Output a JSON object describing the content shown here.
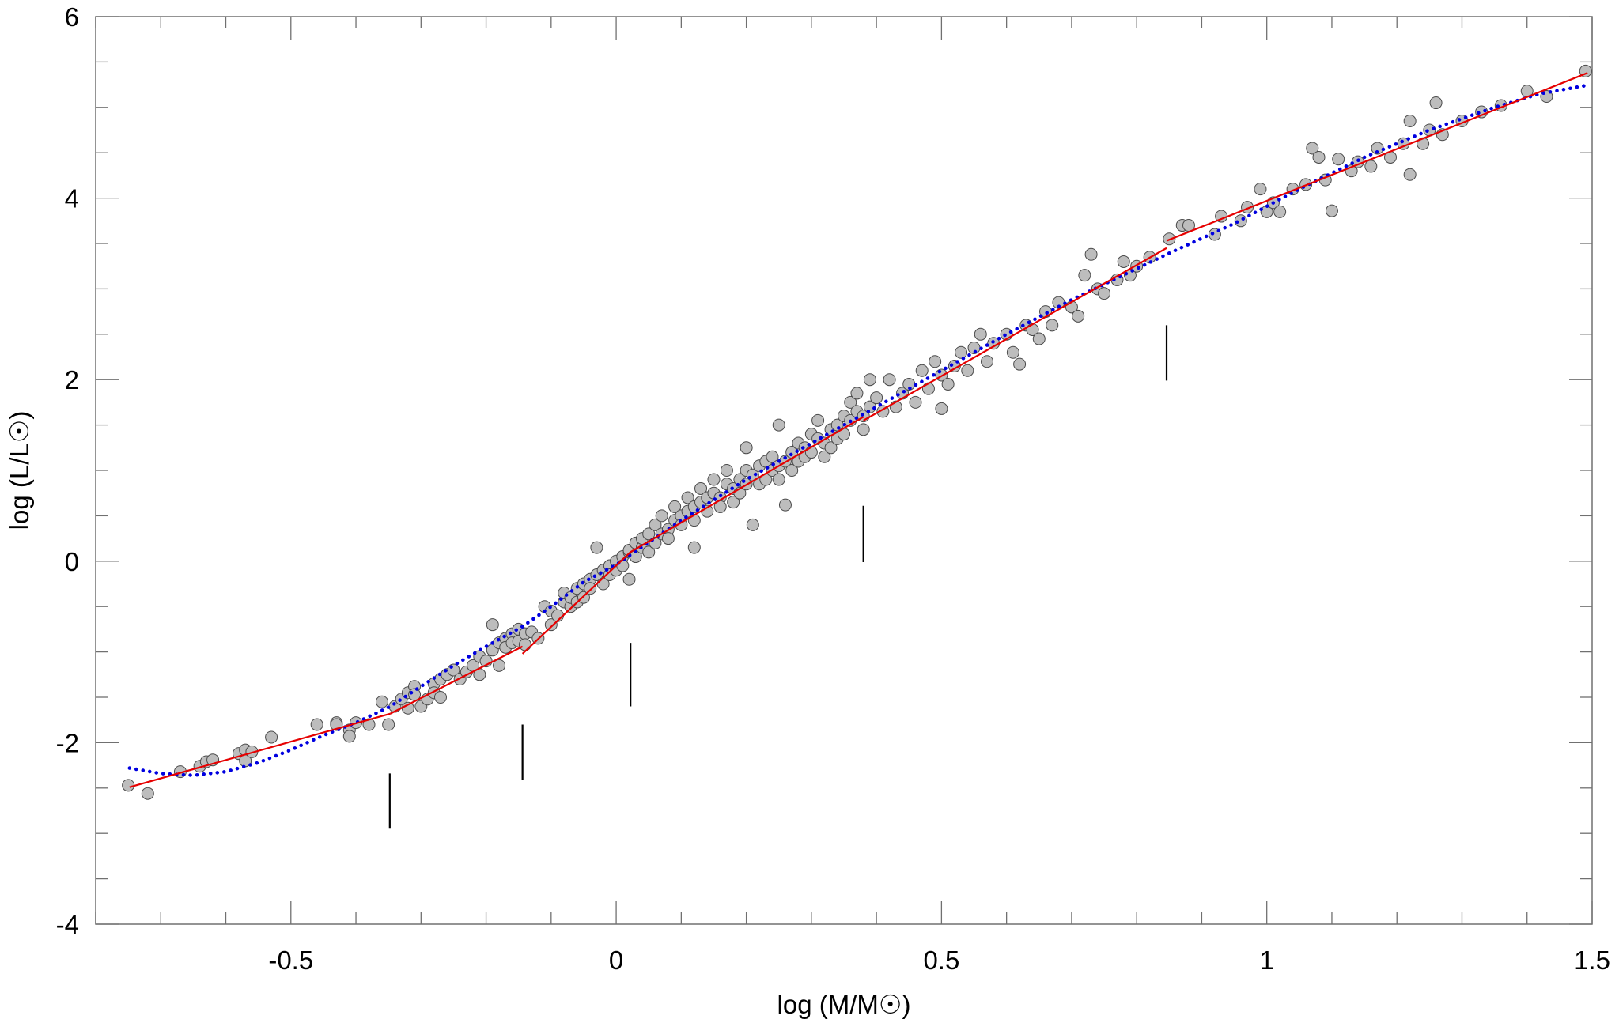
{
  "chart_data": {
    "type": "scatter",
    "title": "",
    "xlabel": "log (M/M☉)",
    "ylabel": "log (L/L☉)",
    "xlim": [
      -0.8,
      1.5
    ],
    "ylim": [
      -4,
      6
    ],
    "grid": false,
    "legend": null,
    "x_ticks": [
      {
        "value": -0.5,
        "label": "-0.5"
      },
      {
        "value": 0,
        "label": "0"
      },
      {
        "value": 0.5,
        "label": "0.5"
      },
      {
        "value": 1,
        "label": "1"
      },
      {
        "value": 1.5,
        "label": "1.5"
      }
    ],
    "x_minor_step": 0.1,
    "y_ticks": [
      {
        "value": -4,
        "label": "-4"
      },
      {
        "value": -2,
        "label": "-2"
      },
      {
        "value": 0,
        "label": "0"
      },
      {
        "value": 2,
        "label": "2"
      },
      {
        "value": 4,
        "label": "4"
      },
      {
        "value": 6,
        "label": "6"
      }
    ],
    "y_minor_step": 0.5,
    "series": [
      {
        "name": "stars",
        "kind": "scatter",
        "color": "#bdbdbd",
        "edge": "#4a4a4a",
        "points": [
          [
            -0.75,
            -2.47
          ],
          [
            -0.72,
            -2.56
          ],
          [
            -0.67,
            -2.32
          ],
          [
            -0.64,
            -2.26
          ],
          [
            -0.63,
            -2.21
          ],
          [
            -0.62,
            -2.19
          ],
          [
            -0.58,
            -2.12
          ],
          [
            -0.57,
            -2.08
          ],
          [
            -0.57,
            -2.2
          ],
          [
            -0.56,
            -2.1
          ],
          [
            -0.53,
            -1.94
          ],
          [
            -0.46,
            -1.8
          ],
          [
            -0.43,
            -1.78
          ],
          [
            -0.43,
            -1.8
          ],
          [
            -0.41,
            -1.86
          ],
          [
            -0.41,
            -1.93
          ],
          [
            -0.4,
            -1.78
          ],
          [
            -0.38,
            -1.8
          ],
          [
            -0.36,
            -1.55
          ],
          [
            -0.35,
            -1.8
          ],
          [
            -0.34,
            -1.6
          ],
          [
            -0.33,
            -1.52
          ],
          [
            -0.32,
            -1.45
          ],
          [
            -0.32,
            -1.62
          ],
          [
            -0.31,
            -1.38
          ],
          [
            -0.31,
            -1.47
          ],
          [
            -0.3,
            -1.6
          ],
          [
            -0.29,
            -1.52
          ],
          [
            -0.28,
            -1.35
          ],
          [
            -0.28,
            -1.45
          ],
          [
            -0.27,
            -1.3
          ],
          [
            -0.27,
            -1.5
          ],
          [
            -0.26,
            -1.25
          ],
          [
            -0.25,
            -1.2
          ],
          [
            -0.24,
            -1.3
          ],
          [
            -0.23,
            -1.22
          ],
          [
            -0.22,
            -1.15
          ],
          [
            -0.21,
            -1.25
          ],
          [
            -0.21,
            -1.05
          ],
          [
            -0.2,
            -1.1
          ],
          [
            -0.19,
            -0.98
          ],
          [
            -0.19,
            -0.7
          ],
          [
            -0.18,
            -0.9
          ],
          [
            -0.18,
            -1.15
          ],
          [
            -0.17,
            -0.85
          ],
          [
            -0.17,
            -0.95
          ],
          [
            -0.16,
            -0.8
          ],
          [
            -0.16,
            -0.9
          ],
          [
            -0.15,
            -0.75
          ],
          [
            -0.15,
            -0.88
          ],
          [
            -0.14,
            -0.8
          ],
          [
            -0.14,
            -0.92
          ],
          [
            -0.13,
            -0.78
          ],
          [
            -0.12,
            -0.85
          ],
          [
            -0.11,
            -0.5
          ],
          [
            -0.1,
            -0.7
          ],
          [
            -0.1,
            -0.55
          ],
          [
            -0.09,
            -0.6
          ],
          [
            -0.08,
            -0.45
          ],
          [
            -0.08,
            -0.35
          ],
          [
            -0.07,
            -0.5
          ],
          [
            -0.07,
            -0.4
          ],
          [
            -0.06,
            -0.3
          ],
          [
            -0.06,
            -0.45
          ],
          [
            -0.05,
            -0.25
          ],
          [
            -0.05,
            -0.4
          ],
          [
            -0.04,
            -0.2
          ],
          [
            -0.04,
            -0.3
          ],
          [
            -0.03,
            -0.15
          ],
          [
            -0.03,
            0.15
          ],
          [
            -0.02,
            -0.1
          ],
          [
            -0.02,
            -0.25
          ],
          [
            -0.01,
            -0.05
          ],
          [
            -0.01,
            -0.15
          ],
          [
            0.0,
            0.0
          ],
          [
            0.0,
            -0.1
          ],
          [
            0.01,
            0.05
          ],
          [
            0.01,
            -0.05
          ],
          [
            0.02,
            0.1
          ],
          [
            0.02,
            -0.2
          ],
          [
            0.02,
            0.12
          ],
          [
            0.03,
            0.2
          ],
          [
            0.03,
            0.05
          ],
          [
            0.04,
            0.15
          ],
          [
            0.04,
            0.25
          ],
          [
            0.05,
            0.1
          ],
          [
            0.05,
            0.3
          ],
          [
            0.06,
            0.2
          ],
          [
            0.06,
            0.4
          ],
          [
            0.07,
            0.3
          ],
          [
            0.07,
            0.5
          ],
          [
            0.08,
            0.35
          ],
          [
            0.08,
            0.25
          ],
          [
            0.09,
            0.45
          ],
          [
            0.09,
            0.6
          ],
          [
            0.1,
            0.5
          ],
          [
            0.1,
            0.4
          ],
          [
            0.11,
            0.55
          ],
          [
            0.11,
            0.7
          ],
          [
            0.12,
            0.6
          ],
          [
            0.12,
            0.45
          ],
          [
            0.12,
            0.15
          ],
          [
            0.13,
            0.65
          ],
          [
            0.13,
            0.8
          ],
          [
            0.14,
            0.55
          ],
          [
            0.14,
            0.7
          ],
          [
            0.15,
            0.75
          ],
          [
            0.15,
            0.9
          ],
          [
            0.16,
            0.7
          ],
          [
            0.16,
            0.6
          ],
          [
            0.17,
            0.85
          ],
          [
            0.17,
            1.0
          ],
          [
            0.18,
            0.8
          ],
          [
            0.18,
            0.65
          ],
          [
            0.19,
            0.9
          ],
          [
            0.19,
            0.75
          ],
          [
            0.2,
            1.0
          ],
          [
            0.2,
            0.85
          ],
          [
            0.2,
            1.25
          ],
          [
            0.21,
            0.95
          ],
          [
            0.21,
            0.4
          ],
          [
            0.22,
            0.85
          ],
          [
            0.22,
            1.05
          ],
          [
            0.23,
            1.1
          ],
          [
            0.23,
            0.9
          ],
          [
            0.24,
            1.0
          ],
          [
            0.24,
            1.15
          ],
          [
            0.25,
            1.05
          ],
          [
            0.25,
            0.9
          ],
          [
            0.25,
            1.5
          ],
          [
            0.26,
            1.1
          ],
          [
            0.26,
            0.62
          ],
          [
            0.27,
            1.2
          ],
          [
            0.27,
            1.0
          ],
          [
            0.28,
            1.3
          ],
          [
            0.28,
            1.1
          ],
          [
            0.29,
            1.25
          ],
          [
            0.29,
            1.15
          ],
          [
            0.3,
            1.4
          ],
          [
            0.3,
            1.2
          ],
          [
            0.31,
            1.35
          ],
          [
            0.31,
            1.55
          ],
          [
            0.32,
            1.3
          ],
          [
            0.32,
            1.15
          ],
          [
            0.33,
            1.45
          ],
          [
            0.33,
            1.25
          ],
          [
            0.34,
            1.5
          ],
          [
            0.34,
            1.35
          ],
          [
            0.35,
            1.6
          ],
          [
            0.35,
            1.4
          ],
          [
            0.36,
            1.75
          ],
          [
            0.36,
            1.55
          ],
          [
            0.37,
            1.65
          ],
          [
            0.37,
            1.85
          ],
          [
            0.38,
            1.6
          ],
          [
            0.38,
            1.45
          ],
          [
            0.39,
            1.7
          ],
          [
            0.39,
            2.0
          ],
          [
            0.4,
            1.8
          ],
          [
            0.41,
            1.65
          ],
          [
            0.42,
            2.0
          ],
          [
            0.43,
            1.7
          ],
          [
            0.44,
            1.85
          ],
          [
            0.45,
            1.95
          ],
          [
            0.46,
            1.75
          ],
          [
            0.47,
            2.1
          ],
          [
            0.48,
            1.9
          ],
          [
            0.49,
            2.2
          ],
          [
            0.5,
            2.05
          ],
          [
            0.5,
            1.68
          ],
          [
            0.51,
            1.95
          ],
          [
            0.52,
            2.15
          ],
          [
            0.53,
            2.3
          ],
          [
            0.54,
            2.1
          ],
          [
            0.55,
            2.35
          ],
          [
            0.56,
            2.5
          ],
          [
            0.57,
            2.2
          ],
          [
            0.58,
            2.4
          ],
          [
            0.6,
            2.5
          ],
          [
            0.61,
            2.3
          ],
          [
            0.62,
            2.17
          ],
          [
            0.63,
            2.6
          ],
          [
            0.64,
            2.55
          ],
          [
            0.65,
            2.45
          ],
          [
            0.66,
            2.75
          ],
          [
            0.67,
            2.6
          ],
          [
            0.68,
            2.85
          ],
          [
            0.7,
            2.8
          ],
          [
            0.71,
            2.7
          ],
          [
            0.72,
            3.15
          ],
          [
            0.73,
            3.38
          ],
          [
            0.74,
            3.0
          ],
          [
            0.75,
            2.95
          ],
          [
            0.77,
            3.1
          ],
          [
            0.78,
            3.3
          ],
          [
            0.79,
            3.15
          ],
          [
            0.8,
            3.25
          ],
          [
            0.82,
            3.35
          ],
          [
            0.85,
            3.55
          ],
          [
            0.87,
            3.7
          ],
          [
            0.88,
            3.7
          ],
          [
            0.92,
            3.6
          ],
          [
            0.93,
            3.8
          ],
          [
            0.96,
            3.75
          ],
          [
            0.97,
            3.9
          ],
          [
            0.99,
            4.1
          ],
          [
            1.0,
            3.85
          ],
          [
            1.01,
            3.95
          ],
          [
            1.02,
            3.85
          ],
          [
            1.04,
            4.1
          ],
          [
            1.06,
            4.15
          ],
          [
            1.07,
            4.55
          ],
          [
            1.08,
            4.45
          ],
          [
            1.09,
            4.2
          ],
          [
            1.1,
            3.86
          ],
          [
            1.11,
            4.43
          ],
          [
            1.13,
            4.3
          ],
          [
            1.14,
            4.4
          ],
          [
            1.16,
            4.35
          ],
          [
            1.17,
            4.55
          ],
          [
            1.19,
            4.45
          ],
          [
            1.21,
            4.6
          ],
          [
            1.22,
            4.26
          ],
          [
            1.22,
            4.85
          ],
          [
            1.24,
            4.6
          ],
          [
            1.25,
            4.75
          ],
          [
            1.26,
            5.05
          ],
          [
            1.27,
            4.7
          ],
          [
            1.3,
            4.85
          ],
          [
            1.33,
            4.95
          ],
          [
            1.36,
            5.02
          ],
          [
            1.4,
            5.18
          ],
          [
            1.43,
            5.12
          ],
          [
            1.49,
            5.4
          ]
        ]
      },
      {
        "name": "fit-piecewise",
        "kind": "line",
        "color": "#e60000",
        "style": "solid",
        "segments": [
          [
            [
              -0.748,
              -2.49
            ],
            [
              -0.347,
              -1.68
            ]
          ],
          [
            [
              -0.347,
              -1.68
            ],
            [
              -0.144,
              -0.94
            ]
          ],
          [
            [
              -0.144,
              -1.02
            ],
            [
              0.022,
              0.1
            ],
            [
              0.38,
              1.59
            ]
          ],
          [
            [
              0.38,
              1.55
            ],
            [
              0.846,
              3.45
            ]
          ],
          [
            [
              0.846,
              3.53
            ],
            [
              1.493,
              5.38
            ]
          ]
        ]
      },
      {
        "name": "fit-polynomial",
        "kind": "line",
        "color": "#0000e0",
        "style": "dotted",
        "points": [
          [
            -0.748,
            -2.28
          ],
          [
            -0.7,
            -2.34
          ],
          [
            -0.65,
            -2.36
          ],
          [
            -0.6,
            -2.32
          ],
          [
            -0.55,
            -2.22
          ],
          [
            -0.5,
            -2.08
          ],
          [
            -0.45,
            -1.92
          ],
          [
            -0.4,
            -1.78
          ],
          [
            -0.347,
            -1.6
          ],
          [
            -0.3,
            -1.38
          ],
          [
            -0.25,
            -1.15
          ],
          [
            -0.2,
            -0.94
          ],
          [
            -0.144,
            -0.72
          ],
          [
            -0.1,
            -0.5
          ],
          [
            -0.05,
            -0.23
          ],
          [
            0.0,
            -0.04
          ],
          [
            0.022,
            0.07
          ],
          [
            0.1,
            0.45
          ],
          [
            0.2,
            0.9
          ],
          [
            0.3,
            1.3
          ],
          [
            0.38,
            1.62
          ],
          [
            0.5,
            2.1
          ],
          [
            0.6,
            2.5
          ],
          [
            0.7,
            2.88
          ],
          [
            0.846,
            3.38
          ],
          [
            0.95,
            3.72
          ],
          [
            1.05,
            4.1
          ],
          [
            1.15,
            4.45
          ],
          [
            1.25,
            4.75
          ],
          [
            1.35,
            5.0
          ],
          [
            1.42,
            5.15
          ],
          [
            1.49,
            5.24
          ]
        ]
      },
      {
        "name": "markers",
        "kind": "vertical-segments",
        "color": "#000000",
        "segments": [
          {
            "x": -0.348,
            "y0": -2.34,
            "y1": -2.94
          },
          {
            "x": -0.144,
            "y0": -1.8,
            "y1": -2.41
          },
          {
            "x": 0.022,
            "y0": -0.9,
            "y1": -1.6
          },
          {
            "x": 0.38,
            "y0": 0.61,
            "y1": -0.01
          },
          {
            "x": 0.846,
            "y0": 2.6,
            "y1": 1.99
          }
        ]
      }
    ]
  }
}
